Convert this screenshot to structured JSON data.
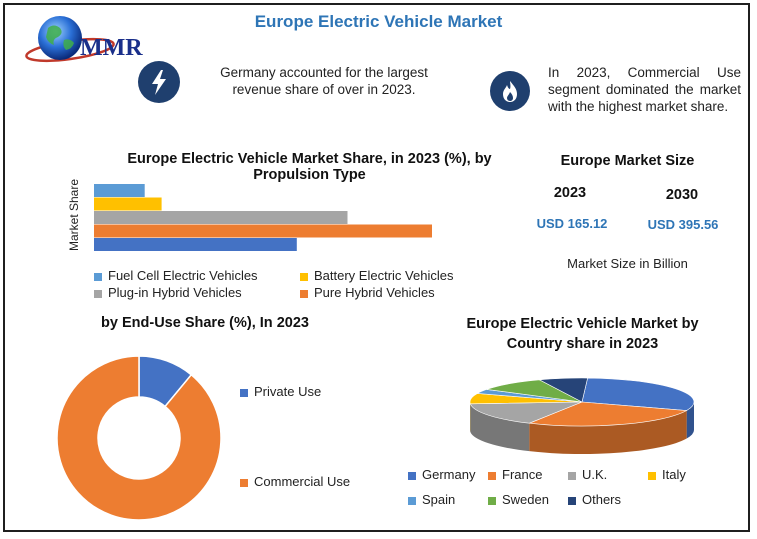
{
  "page": {
    "title": "Europe Electric Vehicle Market",
    "logo_text": "MMR"
  },
  "info": {
    "left_text": "Germany accounted for the largest revenue share of over in 2023.",
    "right_text": "In 2023, Commercial Use segment dominated the market with the highest market share.",
    "left_icon": "lightning-icon",
    "right_icon": "flame-icon"
  },
  "market_size": {
    "heading": "Europe Market Size",
    "year1": "2023",
    "year2": "2030",
    "value1": "USD 165.12",
    "value2": "USD 395.56",
    "note": "Market Size in Billion"
  },
  "chart_data": [
    {
      "type": "bar",
      "orientation": "horizontal",
      "title": "Europe Electric Vehicle Market Share, in 2023 (%), by Propulsion Type",
      "ylabel": "Market Share",
      "categories": [
        "Fuel Cell Electric Vehicles",
        "Battery Electric Vehicles",
        "Plug-in Hybrid Vehicles",
        "Pure Hybrid Vehicles",
        ""
      ],
      "values": [
        15,
        20,
        75,
        100,
        60
      ],
      "colors": [
        "#5b9bd5",
        "#ffc000",
        "#a5a5a5",
        "#ed7d31",
        "#4472c4"
      ],
      "legend": [
        {
          "label": "Fuel Cell Electric Vehicles",
          "color": "#5b9bd5"
        },
        {
          "label": "Battery Electric Vehicles",
          "color": "#ffc000"
        },
        {
          "label": "Plug-in Hybrid Vehicles",
          "color": "#a5a5a5"
        },
        {
          "label": "Pure Hybrid Vehicles",
          "color": "#ed7d31"
        }
      ],
      "legend_position": "bottom"
    },
    {
      "type": "pie",
      "variant": "donut",
      "title": "by End-Use Share (%), In 2023",
      "categories": [
        "Private Use",
        "Commercial Use"
      ],
      "values": [
        11,
        89
      ],
      "colors": [
        "#4472c4",
        "#ed7d31"
      ],
      "legend_position": "right"
    },
    {
      "type": "pie",
      "variant": "3d",
      "title": "Europe Electric Vehicle Market by Country share in 2023",
      "categories": [
        "Germany",
        "France",
        "U.K.",
        "Italy",
        "Spain",
        "Sweden",
        "Others"
      ],
      "values": [
        30,
        27,
        16,
        7,
        3,
        10,
        7
      ],
      "colors": [
        "#4472c4",
        "#ed7d31",
        "#a5a5a5",
        "#ffc000",
        "#5b9bd5",
        "#70ad47",
        "#264478"
      ],
      "legend_position": "bottom"
    }
  ]
}
